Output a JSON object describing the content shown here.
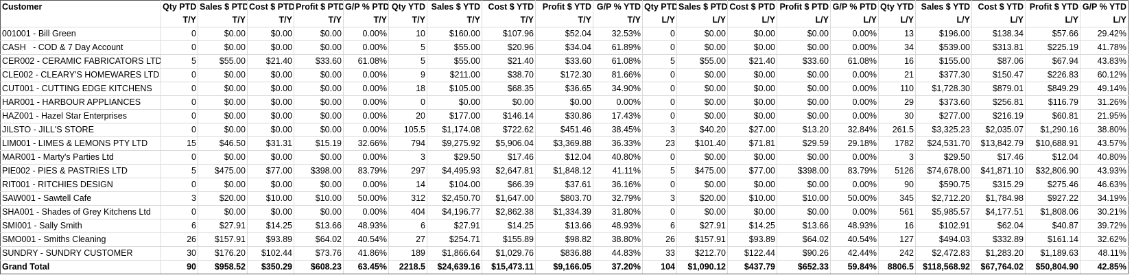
{
  "table": {
    "columns": [
      "Customer",
      "Qty PTD",
      "Sales $ PTD",
      "Cost $ PTD",
      "Profit $ PTD",
      "G/P % PTD",
      "Qty YTD",
      "Sales $ YTD",
      "Cost $ YTD",
      "Profit $ YTD",
      "G/P % YTD",
      "Qty PTD",
      "Sales $ PTD",
      "Cost $ PTD",
      "Profit $ PTD",
      "G/P % PTD",
      "Qty YTD",
      "Sales $ YTD",
      "Cost $ YTD",
      "Profit $ YTD",
      "G/P % YTD"
    ],
    "subheaders": [
      "T/Y",
      "T/Y",
      "T/Y",
      "T/Y",
      "T/Y",
      "T/Y",
      "T/Y",
      "T/Y",
      "T/Y",
      "T/Y",
      "L/Y",
      "L/Y",
      "L/Y",
      "L/Y",
      "L/Y",
      "L/Y",
      "L/Y",
      "L/Y",
      "L/Y",
      "L/Y"
    ],
    "rows": [
      {
        "customer": "001001 - Bill Green",
        "cells": [
          "0",
          "$0.00",
          "$0.00",
          "$0.00",
          "0.00%",
          "10",
          "$160.00",
          "$107.96",
          "$52.04",
          "32.53%",
          "0",
          "$0.00",
          "$0.00",
          "$0.00",
          "0.00%",
          "13",
          "$196.00",
          "$138.34",
          "$57.66",
          "29.42%"
        ]
      },
      {
        "customer": "CASH   - COD & 7 Day Account",
        "cells": [
          "0",
          "$0.00",
          "$0.00",
          "$0.00",
          "0.00%",
          "5",
          "$55.00",
          "$20.96",
          "$34.04",
          "61.89%",
          "0",
          "$0.00",
          "$0.00",
          "$0.00",
          "0.00%",
          "34",
          "$539.00",
          "$313.81",
          "$225.19",
          "41.78%"
        ]
      },
      {
        "customer": "CER002 - CERAMIC FABRICATORS LTD",
        "cells": [
          "5",
          "$55.00",
          "$21.40",
          "$33.60",
          "61.08%",
          "5",
          "$55.00",
          "$21.40",
          "$33.60",
          "61.08%",
          "5",
          "$55.00",
          "$21.40",
          "$33.60",
          "61.08%",
          "16",
          "$155.00",
          "$87.06",
          "$67.94",
          "43.83%"
        ]
      },
      {
        "customer": "CLE002 - CLEARY'S HOMEWARES LTD",
        "cells": [
          "0",
          "$0.00",
          "$0.00",
          "$0.00",
          "0.00%",
          "9",
          "$211.00",
          "$38.70",
          "$172.30",
          "81.66%",
          "0",
          "$0.00",
          "$0.00",
          "$0.00",
          "0.00%",
          "21",
          "$377.30",
          "$150.47",
          "$226.83",
          "60.12%"
        ]
      },
      {
        "customer": "CUT001 - CUTTING EDGE KITCHENS",
        "cells": [
          "0",
          "$0.00",
          "$0.00",
          "$0.00",
          "0.00%",
          "18",
          "$105.00",
          "$68.35",
          "$36.65",
          "34.90%",
          "0",
          "$0.00",
          "$0.00",
          "$0.00",
          "0.00%",
          "110",
          "$1,728.30",
          "$879.01",
          "$849.29",
          "49.14%"
        ]
      },
      {
        "customer": "HAR001 - HARBOUR APPLIANCES",
        "cells": [
          "0",
          "$0.00",
          "$0.00",
          "$0.00",
          "0.00%",
          "0",
          "$0.00",
          "$0.00",
          "$0.00",
          "0.00%",
          "0",
          "$0.00",
          "$0.00",
          "$0.00",
          "0.00%",
          "29",
          "$373.60",
          "$256.81",
          "$116.79",
          "31.26%"
        ]
      },
      {
        "customer": "HAZ001 - Hazel Star Enterprises",
        "cells": [
          "0",
          "$0.00",
          "$0.00",
          "$0.00",
          "0.00%",
          "20",
          "$177.00",
          "$146.14",
          "$30.86",
          "17.43%",
          "0",
          "$0.00",
          "$0.00",
          "$0.00",
          "0.00%",
          "30",
          "$277.00",
          "$216.19",
          "$60.81",
          "21.95%"
        ]
      },
      {
        "customer": "JILSTO - JILL'S STORE",
        "cells": [
          "0",
          "$0.00",
          "$0.00",
          "$0.00",
          "0.00%",
          "105.5",
          "$1,174.08",
          "$722.62",
          "$451.46",
          "38.45%",
          "3",
          "$40.20",
          "$27.00",
          "$13.20",
          "32.84%",
          "261.5",
          "$3,325.23",
          "$2,035.07",
          "$1,290.16",
          "38.80%"
        ]
      },
      {
        "customer": "LIM001 - LIMES & LEMONS PTY LTD",
        "cells": [
          "15",
          "$46.50",
          "$31.31",
          "$15.19",
          "32.66%",
          "794",
          "$9,275.92",
          "$5,906.04",
          "$3,369.88",
          "36.33%",
          "23",
          "$101.40",
          "$71.81",
          "$29.59",
          "29.18%",
          "1782",
          "$24,531.70",
          "$13,842.79",
          "$10,688.91",
          "43.57%"
        ]
      },
      {
        "customer": "MAR001 - Marty's Parties Ltd",
        "cells": [
          "0",
          "$0.00",
          "$0.00",
          "$0.00",
          "0.00%",
          "3",
          "$29.50",
          "$17.46",
          "$12.04",
          "40.80%",
          "0",
          "$0.00",
          "$0.00",
          "$0.00",
          "0.00%",
          "3",
          "$29.50",
          "$17.46",
          "$12.04",
          "40.80%"
        ]
      },
      {
        "customer": "PIE002 - PIES & PASTRIES LTD",
        "cells": [
          "5",
          "$475.00",
          "$77.00",
          "$398.00",
          "83.79%",
          "297",
          "$4,495.93",
          "$2,647.81",
          "$1,848.12",
          "41.11%",
          "5",
          "$475.00",
          "$77.00",
          "$398.00",
          "83.79%",
          "5126",
          "$74,678.00",
          "$41,871.10",
          "$32,806.90",
          "43.93%"
        ]
      },
      {
        "customer": "RIT001 - RITCHIES DESIGN",
        "cells": [
          "0",
          "$0.00",
          "$0.00",
          "$0.00",
          "0.00%",
          "14",
          "$104.00",
          "$66.39",
          "$37.61",
          "36.16%",
          "0",
          "$0.00",
          "$0.00",
          "$0.00",
          "0.00%",
          "90",
          "$590.75",
          "$315.29",
          "$275.46",
          "46.63%"
        ]
      },
      {
        "customer": "SAW001 - Sawtell Cafe",
        "cells": [
          "3",
          "$20.00",
          "$10.00",
          "$10.00",
          "50.00%",
          "312",
          "$2,450.70",
          "$1,647.00",
          "$803.70",
          "32.79%",
          "3",
          "$20.00",
          "$10.00",
          "$10.00",
          "50.00%",
          "345",
          "$2,712.20",
          "$1,784.98",
          "$927.22",
          "34.19%"
        ]
      },
      {
        "customer": "SHA001 - Shades of Grey Kitchens Ltd",
        "cells": [
          "0",
          "$0.00",
          "$0.00",
          "$0.00",
          "0.00%",
          "404",
          "$4,196.77",
          "$2,862.38",
          "$1,334.39",
          "31.80%",
          "0",
          "$0.00",
          "$0.00",
          "$0.00",
          "0.00%",
          "561",
          "$5,985.57",
          "$4,177.51",
          "$1,808.06",
          "30.21%"
        ]
      },
      {
        "customer": "SMI001 - Sally Smith",
        "cells": [
          "6",
          "$27.91",
          "$14.25",
          "$13.66",
          "48.93%",
          "6",
          "$27.91",
          "$14.25",
          "$13.66",
          "48.93%",
          "6",
          "$27.91",
          "$14.25",
          "$13.66",
          "48.93%",
          "16",
          "$102.91",
          "$62.04",
          "$40.87",
          "39.72%"
        ]
      },
      {
        "customer": "SMO001 - Smiths Cleaning",
        "cells": [
          "26",
          "$157.91",
          "$93.89",
          "$64.02",
          "40.54%",
          "27",
          "$254.71",
          "$155.89",
          "$98.82",
          "38.80%",
          "26",
          "$157.91",
          "$93.89",
          "$64.02",
          "40.54%",
          "127",
          "$494.03",
          "$332.89",
          "$161.14",
          "32.62%"
        ]
      },
      {
        "customer": "SUNDRY - SUNDRY CUSTOMER",
        "cells": [
          "30",
          "$176.20",
          "$102.44",
          "$73.76",
          "41.86%",
          "189",
          "$1,866.64",
          "$1,029.76",
          "$836.88",
          "44.83%",
          "33",
          "$212.70",
          "$122.44",
          "$90.26",
          "42.44%",
          "242",
          "$2,472.83",
          "$1,283.20",
          "$1,189.63",
          "48.11%"
        ]
      }
    ],
    "grand_total": {
      "customer": "Grand Total",
      "cells": [
        "90",
        "$958.52",
        "$350.29",
        "$608.23",
        "63.45%",
        "2218.5",
        "$24,639.16",
        "$15,473.11",
        "$9,166.05",
        "37.20%",
        "104",
        "$1,090.12",
        "$437.79",
        "$652.33",
        "59.84%",
        "8806.5",
        "$118,568.92",
        "$67,764.02",
        "$50,804.90",
        "42.85%"
      ]
    }
  }
}
